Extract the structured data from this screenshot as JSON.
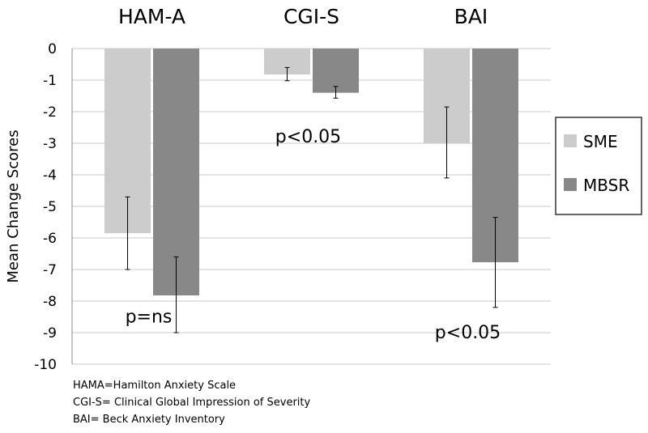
{
  "chart_data": {
    "type": "bar",
    "title": "",
    "xlabel": "",
    "ylabel": "Mean Change Scores",
    "ylim": [
      -10,
      0
    ],
    "yticks": [
      0,
      -1,
      -2,
      -3,
      -4,
      -5,
      -6,
      -7,
      -8,
      -9,
      -10
    ],
    "categories": [
      "HAM-A",
      "CGI-S",
      "BAI"
    ],
    "series": [
      {
        "name": "SME",
        "color": "#cccccc",
        "values": [
          -5.85,
          -0.82,
          -3.0
        ],
        "error": [
          [
            -7.0,
            -4.7
          ],
          [
            -1.02,
            -0.6
          ],
          [
            -4.1,
            -1.85
          ]
        ]
      },
      {
        "name": "MBSR",
        "color": "#888888",
        "values": [
          -7.82,
          -1.4,
          -6.77
        ],
        "error": [
          [
            -9.0,
            -6.6
          ],
          [
            -1.57,
            -1.2
          ],
          [
            -8.2,
            -5.35
          ]
        ]
      }
    ],
    "annotations": [
      {
        "text": "p=ns",
        "category": "HAM-A",
        "y": -8.5
      },
      {
        "text": "p<0.05",
        "category": "CGI-S",
        "y": -2.8
      },
      {
        "text": "p<0.05",
        "category": "BAI",
        "y": -9.0
      }
    ],
    "legend": "right",
    "grid": true
  },
  "footnotes": [
    "HAMA=Hamilton Anxiety Scale",
    "CGI-S= Clinical Global Impression of Severity",
    "BAI= Beck Anxiety Inventory"
  ]
}
